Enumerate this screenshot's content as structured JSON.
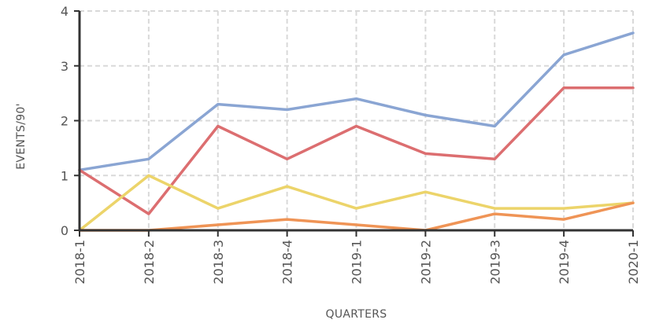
{
  "chart_data": {
    "type": "line",
    "title": "",
    "xlabel": "QUARTERS",
    "ylabel": "EVENTS/90'",
    "categories": [
      "2018-1",
      "2018-2",
      "2018-3",
      "2018-4",
      "2019-1",
      "2019-2",
      "2019-3",
      "2019-4",
      "2020-1"
    ],
    "ylim": [
      0,
      4
    ],
    "yticks": [
      "0",
      "1",
      "2",
      "3",
      "4"
    ],
    "grid": true,
    "series": [
      {
        "name": "series-blue",
        "color": "#8aa5d3",
        "values": [
          1.1,
          1.3,
          2.3,
          2.2,
          2.4,
          2.1,
          1.9,
          3.2,
          3.6
        ]
      },
      {
        "name": "series-red",
        "color": "#dc6e70",
        "values": [
          1.1,
          0.3,
          1.9,
          1.3,
          1.9,
          1.4,
          1.3,
          2.6,
          2.6
        ]
      },
      {
        "name": "series-yellow",
        "color": "#ecd46a",
        "values": [
          0.0,
          1.0,
          0.4,
          0.8,
          0.4,
          0.7,
          0.4,
          0.4,
          0.5
        ]
      },
      {
        "name": "series-orange",
        "color": "#ef9456",
        "values": [
          0.0,
          0.0,
          0.1,
          0.2,
          0.1,
          0.0,
          0.3,
          0.2,
          0.5
        ]
      }
    ]
  }
}
